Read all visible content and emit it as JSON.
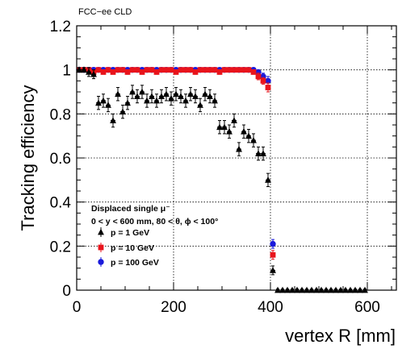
{
  "chart_data": {
    "type": "scatter",
    "title": "",
    "experiment_label": "FCC−ee CLD",
    "xlabel": "vertex R [mm]",
    "ylabel": "Tracking efficiency",
    "xlim": [
      0,
      660
    ],
    "ylim": [
      0,
      1.2
    ],
    "x_ticks": [
      0,
      200,
      400,
      600
    ],
    "x_tick_labels": [
      "0",
      "200",
      "400",
      "600"
    ],
    "y_ticks": [
      0,
      0.2,
      0.4,
      0.6,
      0.8,
      1.0,
      1.2
    ],
    "y_tick_labels": [
      "0",
      "0.2",
      "0.4",
      "0.6",
      "0.8",
      "1",
      "1.2"
    ],
    "grid": true,
    "legend_title": "Displaced single μ⁻",
    "legend_subtitle": "0 < y < 600 mm, 80 < θ, ϕ < 100°",
    "legend_position": "bottom-left",
    "series": [
      {
        "name": "p = 1 GeV",
        "color": "#000000",
        "marker": "triangle",
        "x": [
          5,
          15,
          25,
          35,
          45,
          55,
          65,
          75,
          85,
          95,
          105,
          115,
          125,
          135,
          145,
          155,
          165,
          175,
          185,
          195,
          205,
          215,
          225,
          235,
          245,
          255,
          265,
          275,
          285,
          295,
          305,
          315,
          325,
          335,
          345,
          355,
          365,
          375,
          385,
          395,
          405,
          415,
          425,
          435,
          445,
          455,
          465,
          475,
          485,
          495,
          505,
          515,
          525,
          535,
          545,
          555,
          565,
          575,
          585,
          595
        ],
        "y": [
          1.0,
          1.0,
          0.99,
          0.98,
          0.85,
          0.86,
          0.84,
          0.77,
          0.89,
          0.81,
          0.85,
          0.9,
          0.88,
          0.9,
          0.86,
          0.88,
          0.86,
          0.88,
          0.89,
          0.87,
          0.89,
          0.88,
          0.86,
          0.89,
          0.88,
          0.84,
          0.89,
          0.88,
          0.86,
          0.74,
          0.74,
          0.72,
          0.77,
          0.64,
          0.72,
          0.7,
          0.68,
          0.62,
          0.62,
          0.5,
          0.09,
          0.0,
          0.0,
          0.0,
          0.0,
          0.0,
          0.0,
          0.0,
          0.0,
          0.0,
          0.0,
          0.0,
          0.0,
          0.0,
          0.0,
          0.0,
          0.0,
          0.0,
          0.0,
          0.0
        ],
        "yerr": [
          0.01,
          0.01,
          0.02,
          0.02,
          0.03,
          0.03,
          0.03,
          0.03,
          0.03,
          0.03,
          0.03,
          0.03,
          0.03,
          0.03,
          0.03,
          0.03,
          0.03,
          0.03,
          0.03,
          0.03,
          0.03,
          0.03,
          0.03,
          0.03,
          0.03,
          0.03,
          0.03,
          0.03,
          0.03,
          0.03,
          0.03,
          0.03,
          0.03,
          0.03,
          0.03,
          0.03,
          0.03,
          0.03,
          0.03,
          0.03,
          0.02,
          0.005,
          0.005,
          0.005,
          0.005,
          0.005,
          0.005,
          0.005,
          0.005,
          0.005,
          0.005,
          0.005,
          0.005,
          0.005,
          0.005,
          0.005,
          0.005,
          0.005,
          0.005,
          0.005
        ]
      },
      {
        "name": "p = 10 GeV",
        "color": "#e8141c",
        "marker": "square",
        "x": [
          5,
          15,
          25,
          35,
          45,
          55,
          65,
          75,
          85,
          95,
          105,
          115,
          125,
          135,
          145,
          155,
          165,
          175,
          185,
          195,
          205,
          215,
          225,
          235,
          245,
          255,
          265,
          275,
          285,
          295,
          305,
          315,
          325,
          335,
          345,
          355,
          365,
          375,
          385,
          395,
          405
        ],
        "y": [
          1.0,
          1.0,
          1.0,
          0.99,
          1.0,
          0.99,
          1.0,
          0.99,
          1.0,
          1.0,
          0.99,
          1.0,
          1.0,
          0.99,
          1.0,
          1.0,
          0.99,
          1.0,
          1.0,
          1.0,
          0.99,
          1.0,
          1.0,
          1.0,
          0.99,
          1.0,
          1.0,
          1.0,
          1.0,
          0.99,
          1.0,
          1.0,
          1.0,
          1.0,
          1.0,
          1.0,
          0.99,
          0.97,
          0.95,
          0.92,
          0.16
        ],
        "yerr": [
          0.01,
          0.01,
          0.01,
          0.01,
          0.01,
          0.01,
          0.01,
          0.01,
          0.01,
          0.01,
          0.01,
          0.01,
          0.01,
          0.01,
          0.01,
          0.01,
          0.01,
          0.01,
          0.01,
          0.01,
          0.01,
          0.01,
          0.01,
          0.01,
          0.01,
          0.01,
          0.01,
          0.01,
          0.01,
          0.01,
          0.01,
          0.01,
          0.01,
          0.01,
          0.01,
          0.01,
          0.01,
          0.015,
          0.015,
          0.02,
          0.02
        ]
      },
      {
        "name": "p = 100 GeV",
        "color": "#1a1adb",
        "marker": "circle",
        "x": [
          5,
          15,
          25,
          35,
          45,
          55,
          65,
          75,
          85,
          95,
          105,
          115,
          125,
          135,
          145,
          155,
          165,
          175,
          185,
          195,
          205,
          215,
          225,
          235,
          245,
          255,
          265,
          275,
          285,
          295,
          305,
          315,
          325,
          335,
          345,
          355,
          365,
          375,
          385,
          395,
          405
        ],
        "y": [
          1.0,
          1.0,
          1.0,
          1.0,
          1.0,
          1.0,
          1.0,
          1.0,
          1.0,
          1.0,
          1.0,
          1.0,
          1.0,
          1.0,
          1.0,
          1.0,
          1.0,
          1.0,
          1.0,
          1.0,
          1.0,
          1.0,
          1.0,
          1.0,
          1.0,
          1.0,
          1.0,
          1.0,
          1.0,
          1.0,
          1.0,
          1.0,
          1.0,
          1.0,
          1.0,
          1.0,
          1.0,
          0.99,
          0.97,
          0.95,
          0.21
        ],
        "yerr": [
          0.01,
          0.01,
          0.01,
          0.01,
          0.01,
          0.01,
          0.01,
          0.01,
          0.01,
          0.01,
          0.01,
          0.01,
          0.01,
          0.01,
          0.01,
          0.01,
          0.01,
          0.01,
          0.01,
          0.01,
          0.01,
          0.01,
          0.01,
          0.01,
          0.01,
          0.01,
          0.01,
          0.01,
          0.01,
          0.01,
          0.01,
          0.01,
          0.01,
          0.01,
          0.01,
          0.01,
          0.01,
          0.01,
          0.015,
          0.02,
          0.02
        ]
      }
    ]
  }
}
